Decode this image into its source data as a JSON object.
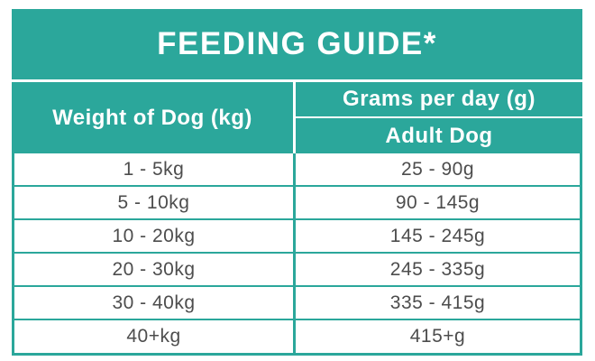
{
  "colors": {
    "accent_teal": "#2BA79B",
    "header_text": "#FFFFFF",
    "row_text": "#4D4D4D",
    "background": "#FFFFFF"
  },
  "table": {
    "title": "FEEDING GUIDE*",
    "weight_header": "Weight of Dog (kg)",
    "grams_header": "Grams per day (g)",
    "adult_subheader": "Adult Dog",
    "rows": [
      {
        "weight": "1 - 5kg",
        "grams": "25 - 90g"
      },
      {
        "weight": "5 - 10kg",
        "grams": "90 - 145g"
      },
      {
        "weight": "10 - 20kg",
        "grams": "145 - 245g"
      },
      {
        "weight": "20 - 30kg",
        "grams": "245 - 335g"
      },
      {
        "weight": "30 - 40kg",
        "grams": "335 - 415g"
      },
      {
        "weight": "40+kg",
        "grams": "415+g"
      }
    ]
  },
  "chart_data": {
    "type": "table",
    "title": "FEEDING GUIDE*",
    "column_groups": [
      {
        "label": "Weight of Dog (kg)",
        "sub_columns": []
      },
      {
        "label": "Grams per day (g)",
        "sub_columns": [
          "Adult Dog"
        ]
      }
    ],
    "columns": [
      "Weight of Dog (kg)",
      "Grams per day (g) - Adult Dog"
    ],
    "rows": [
      [
        "1 - 5kg",
        "25 - 90g"
      ],
      [
        "5 - 10kg",
        "90 - 145g"
      ],
      [
        "10 - 20kg",
        "145 - 245g"
      ],
      [
        "20 - 30kg",
        "245 - 335g"
      ],
      [
        "30 - 40kg",
        "335 - 415g"
      ],
      [
        "40+kg",
        "415+g"
      ]
    ],
    "layout": {
      "header_background": "#2BA79B",
      "header_text_color": "#FFFFFF",
      "body_text_color": "#4D4D4D",
      "grid_color": "#2BA79B",
      "grid_on": true
    }
  }
}
